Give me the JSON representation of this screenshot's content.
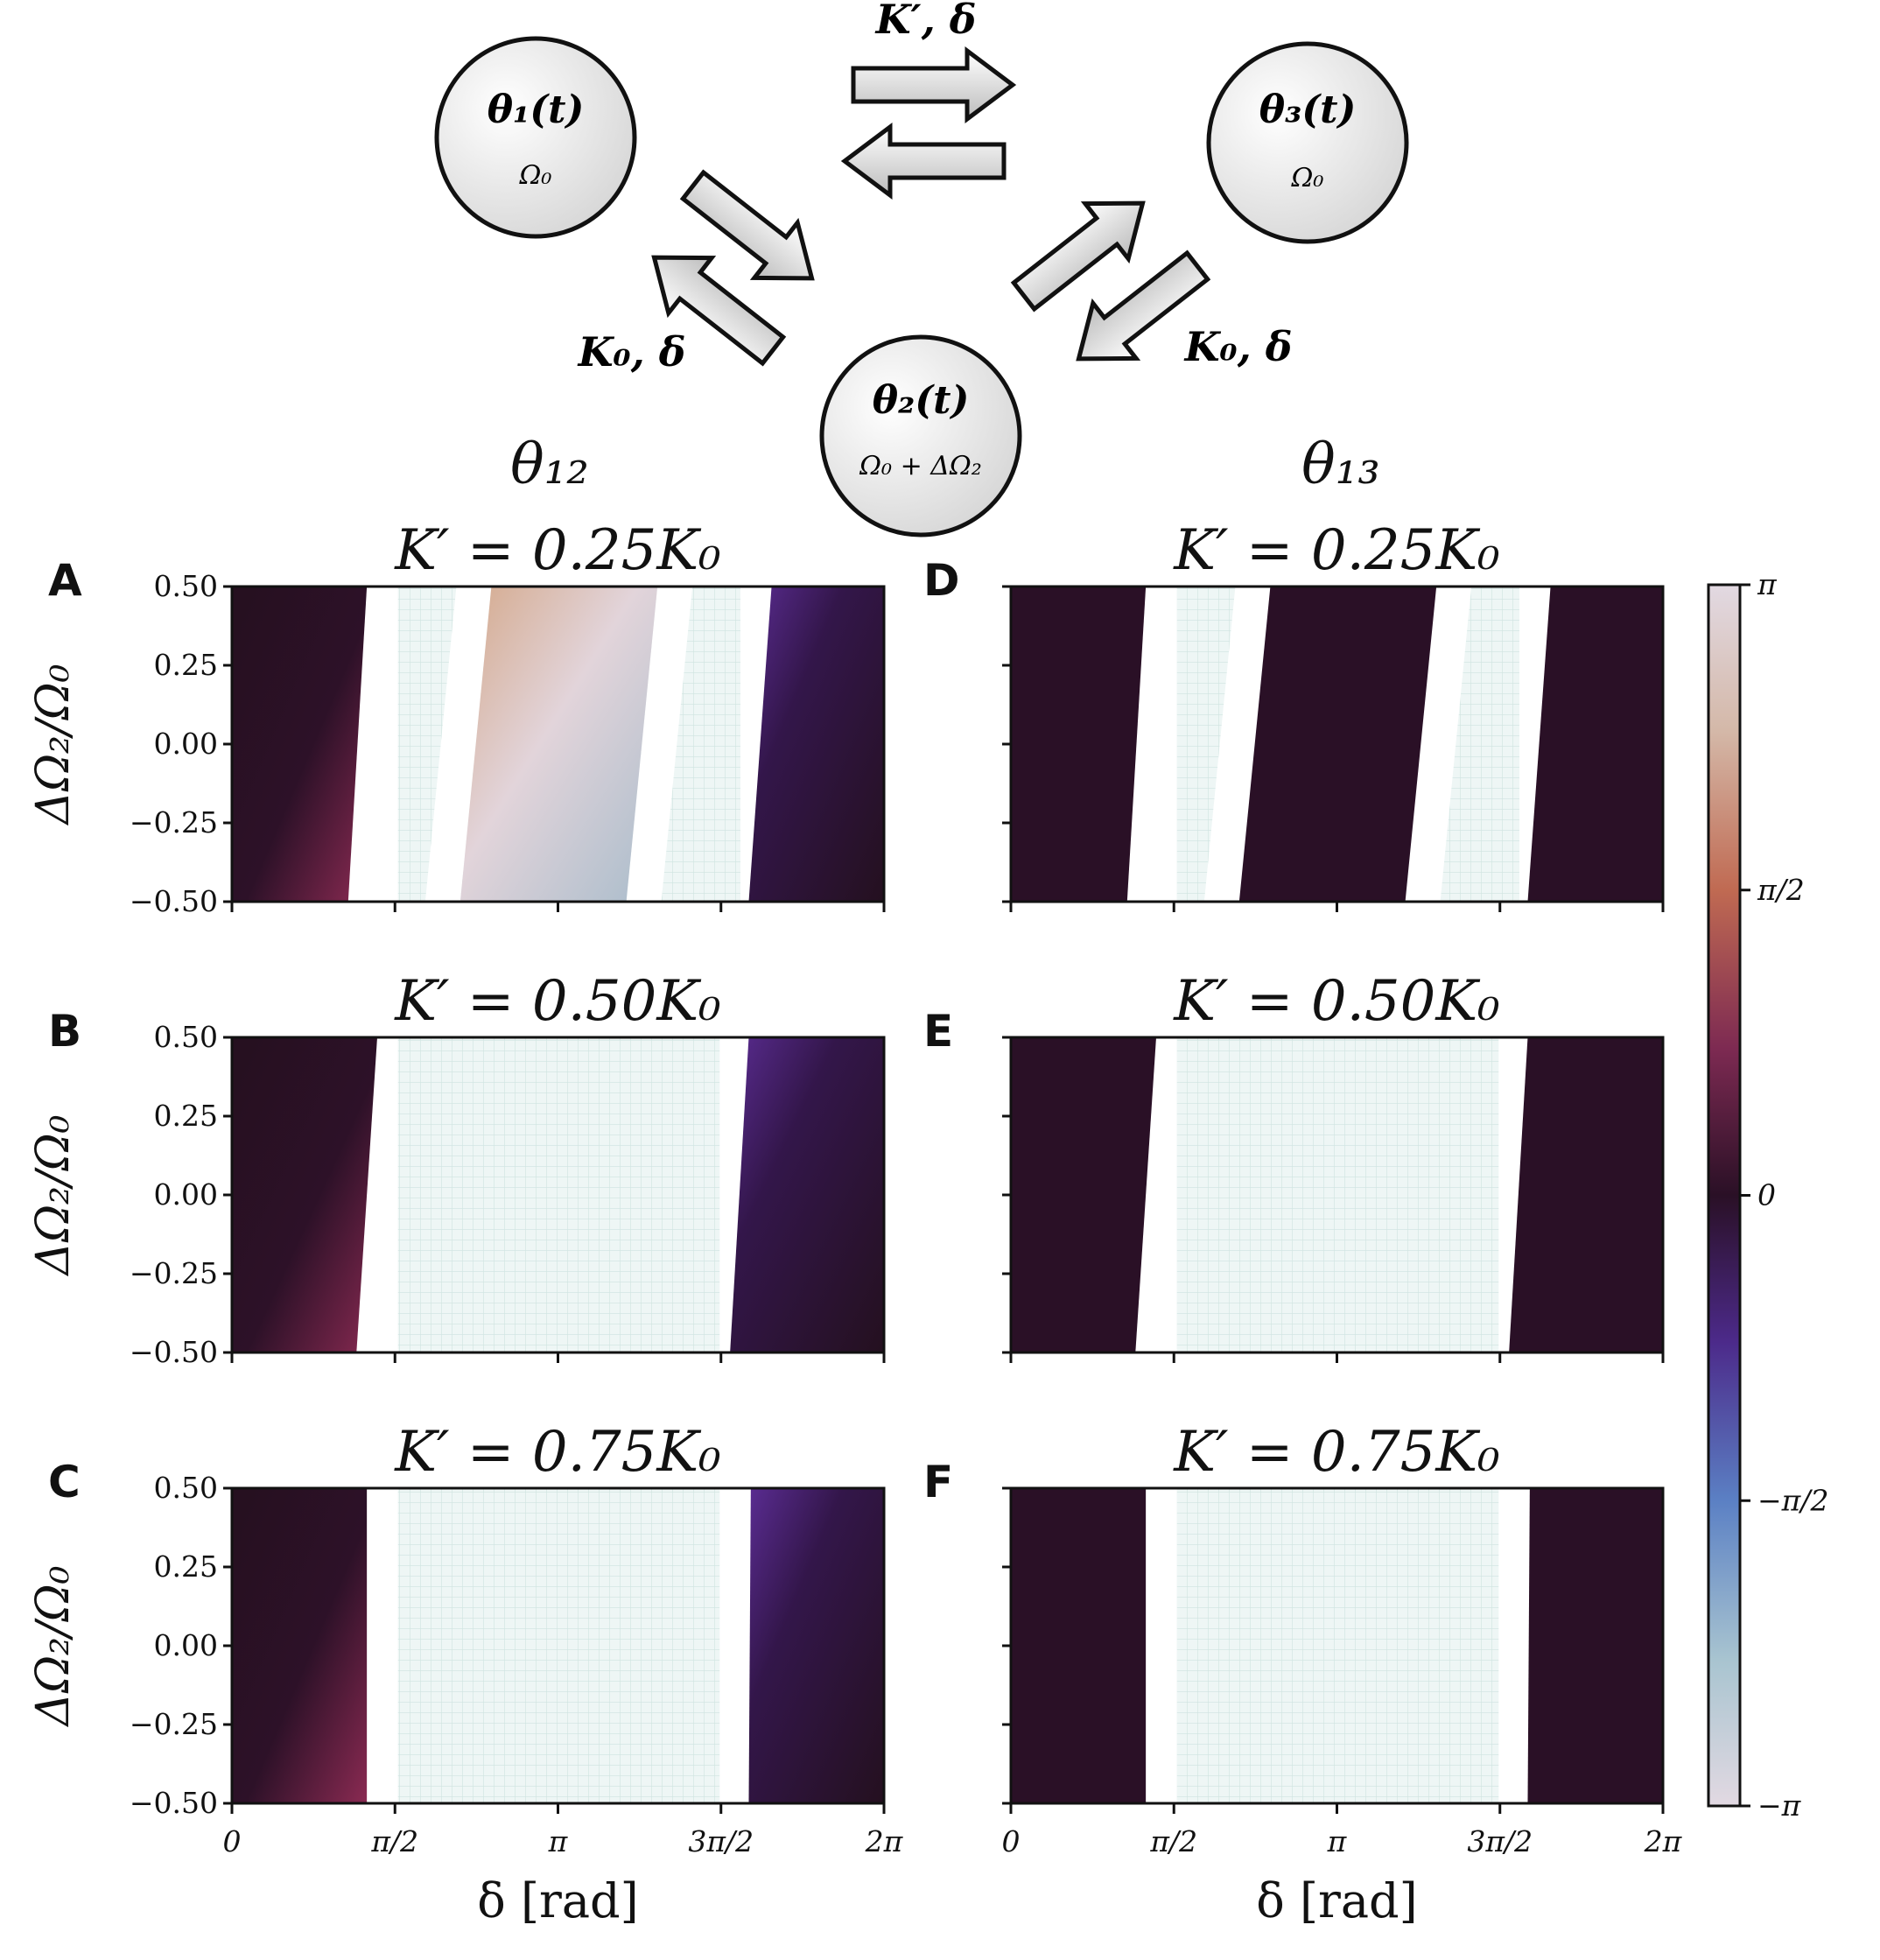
{
  "diagram": {
    "nodes": [
      {
        "label": "θ₁(t)",
        "sub": "Ω₀"
      },
      {
        "label": "θ₂(t)",
        "sub": "Ω₀ + ΔΩ₂"
      },
      {
        "label": "θ₃(t)",
        "sub": "Ω₀"
      }
    ],
    "edge_labels": {
      "top": "K′, δ",
      "left": "K₀, δ",
      "right": "K₀, δ"
    }
  },
  "column_titles": [
    "θ₁₂",
    "θ₁₃"
  ],
  "colors": {
    "dark": "#2a1026",
    "sync": "#eef6f5",
    "sync_grid": "#cfe4e0",
    "none": "#ffffff"
  },
  "colorbar": {
    "ticks": [
      "π",
      "π/2",
      "0",
      "−π/2",
      "−π"
    ],
    "colormap": "twilight"
  },
  "chart_data": [
    {
      "type": "heatmap",
      "panel": "A",
      "title": "K′ = 0.25K₀",
      "column": "θ₁₂",
      "xlabel": "",
      "ylabel": "ΔΩ₂/Ω₀",
      "xlim": [
        0,
        6.2832
      ],
      "ylim": [
        -0.5,
        0.5
      ],
      "y_ticks": [
        "0.50",
        "0.25",
        "0.00",
        "−0.25",
        "−0.50"
      ],
      "x_ticks": [],
      "regions": {
        "dark_left": [
          [
            0.5,
            1.3
          ],
          [
            -0.5,
            1.12
          ]
        ],
        "nosync_left": [
          [
            0.5,
            1.6
          ],
          [
            -0.5,
            1.6
          ]
        ],
        "sync_left": [
          [
            0.5,
            2.5
          ],
          [
            -0.5,
            2.2
          ]
        ],
        "gradient_band": [
          [
            0.5,
            4.1
          ],
          [
            -0.5,
            3.8
          ]
        ],
        "sync_right": [
          [
            0.5,
            4.9
          ],
          [
            -0.5,
            4.9
          ]
        ],
        "nosync_right": [
          [
            0.5,
            5.2
          ],
          [
            -0.5,
            4.98
          ]
        ]
      }
    },
    {
      "type": "heatmap",
      "panel": "B",
      "title": "K′ = 0.50K₀",
      "column": "θ₁₂",
      "xlabel": "",
      "ylabel": "ΔΩ₂/Ω₀",
      "xlim": [
        0,
        6.2832
      ],
      "ylim": [
        -0.5,
        0.5
      ],
      "y_ticks": [
        "0.50",
        "0.25",
        "0.00",
        "−0.25",
        "−0.50"
      ],
      "x_ticks": [],
      "regions": {
        "dark_left": [
          [
            0.5,
            1.4
          ],
          [
            -0.5,
            1.2
          ]
        ],
        "nosync_left": [
          [
            0.5,
            1.6
          ],
          [
            -0.5,
            1.6
          ]
        ],
        "sync_right": [
          [
            0.5,
            4.7
          ],
          [
            -0.5,
            4.7
          ]
        ],
        "nosync_right": [
          [
            0.5,
            4.98
          ],
          [
            -0.5,
            4.8
          ]
        ]
      }
    },
    {
      "type": "heatmap",
      "panel": "C",
      "title": "K′ = 0.75K₀",
      "column": "θ₁₂",
      "xlabel": "δ [rad]",
      "ylabel": "ΔΩ₂/Ω₀",
      "xlim": [
        0,
        6.2832
      ],
      "ylim": [
        -0.5,
        0.5
      ],
      "y_ticks": [
        "0.50",
        "0.25",
        "0.00",
        "−0.25",
        "−0.50"
      ],
      "x_ticks": [
        "0",
        "π/2",
        "π",
        "3π/2",
        "2π"
      ],
      "regions": {
        "dark_left": [
          [
            0.5,
            1.3
          ],
          [
            -0.5,
            1.3
          ]
        ],
        "nosync_left": [
          [
            0.5,
            1.6
          ],
          [
            -0.5,
            1.6
          ]
        ],
        "sync_right": [
          [
            0.5,
            4.7
          ],
          [
            -0.5,
            4.7
          ]
        ],
        "nosync_right": [
          [
            0.5,
            5.0
          ],
          [
            -0.5,
            4.98
          ]
        ]
      }
    },
    {
      "type": "heatmap",
      "panel": "D",
      "title": "K′ = 0.25K₀",
      "column": "θ₁₃",
      "xlabel": "",
      "ylabel": "",
      "xlim": [
        0,
        6.2832
      ],
      "ylim": [
        -0.5,
        0.5
      ],
      "y_ticks": [],
      "x_ticks": [],
      "regions": {
        "dark_left": [
          [
            0.5,
            1.3
          ],
          [
            -0.5,
            1.12
          ]
        ],
        "nosync_left": [
          [
            0.5,
            1.6
          ],
          [
            -0.5,
            1.6
          ]
        ],
        "sync_left": [
          [
            0.5,
            2.5
          ],
          [
            -0.5,
            2.2
          ]
        ],
        "dark_mid": [
          [
            0.5,
            4.1
          ],
          [
            -0.5,
            3.8
          ]
        ],
        "sync_right": [
          [
            0.5,
            4.9
          ],
          [
            -0.5,
            4.9
          ]
        ],
        "nosync_right": [
          [
            0.5,
            5.2
          ],
          [
            -0.5,
            4.98
          ]
        ]
      }
    },
    {
      "type": "heatmap",
      "panel": "E",
      "title": "K′ = 0.50K₀",
      "column": "θ₁₃",
      "xlabel": "",
      "ylabel": "",
      "xlim": [
        0,
        6.2832
      ],
      "ylim": [
        -0.5,
        0.5
      ],
      "y_ticks": [],
      "x_ticks": [],
      "regions": {
        "dark_left": [
          [
            0.5,
            1.4
          ],
          [
            -0.5,
            1.2
          ]
        ],
        "nosync_left": [
          [
            0.5,
            1.6
          ],
          [
            -0.5,
            1.6
          ]
        ],
        "sync_right": [
          [
            0.5,
            4.7
          ],
          [
            -0.5,
            4.7
          ]
        ],
        "nosync_right": [
          [
            0.5,
            4.98
          ],
          [
            -0.5,
            4.8
          ]
        ]
      }
    },
    {
      "type": "heatmap",
      "panel": "F",
      "title": "K′ = 0.75K₀",
      "column": "θ₁₃",
      "xlabel": "δ [rad]",
      "ylabel": "",
      "xlim": [
        0,
        6.2832
      ],
      "ylim": [
        -0.5,
        0.5
      ],
      "y_ticks": [],
      "x_ticks": [
        "0",
        "π/2",
        "π",
        "3π/2",
        "2π"
      ],
      "regions": {
        "dark_left": [
          [
            0.5,
            1.3
          ],
          [
            -0.5,
            1.3
          ]
        ],
        "nosync_left": [
          [
            0.5,
            1.6
          ],
          [
            -0.5,
            1.6
          ]
        ],
        "sync_right": [
          [
            0.5,
            4.7
          ],
          [
            -0.5,
            4.7
          ]
        ],
        "nosync_right": [
          [
            0.5,
            5.0
          ],
          [
            -0.5,
            4.98
          ]
        ]
      }
    }
  ]
}
